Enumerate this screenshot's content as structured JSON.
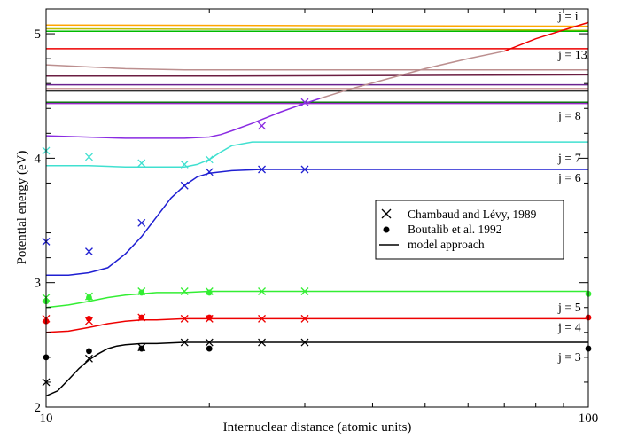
{
  "chart_data": {
    "type": "line",
    "xlabel": "Internuclear distance (atomic units)",
    "ylabel": "Potential energy (eV)",
    "xscale": "log",
    "xlim": [
      10,
      100
    ],
    "ylim": [
      2,
      5.2
    ],
    "xticks": [
      10,
      100
    ],
    "yticks": [
      2,
      3,
      4,
      5
    ],
    "grid": false,
    "legend_position": "center-right",
    "legend": [
      {
        "marker": "cross",
        "label": "Chambaud and Lévy, 1989"
      },
      {
        "marker": "dot",
        "label": "Boutalib et al. 1992"
      },
      {
        "marker": "line",
        "label": "model approach"
      }
    ],
    "curve_labels": [
      {
        "text": "j = i",
        "x": 88,
        "y": 5.11
      },
      {
        "text": "j = 13",
        "x": 88,
        "y": 4.8
      },
      {
        "text": "j = 8",
        "x": 88,
        "y": 4.31
      },
      {
        "text": "j = 7",
        "x": 88,
        "y": 3.97
      },
      {
        "text": "j = 6",
        "x": 88,
        "y": 3.81
      },
      {
        "text": "j = 5",
        "x": 88,
        "y": 2.77
      },
      {
        "text": "j = 4",
        "x": 88,
        "y": 2.61
      },
      {
        "text": "j = 3",
        "x": 88,
        "y": 2.37
      }
    ],
    "series": [
      {
        "color": "#ffa500",
        "x": [
          10,
          100
        ],
        "y": [
          5.07,
          5.06
        ]
      },
      {
        "color": "#bcbc00",
        "x": [
          10,
          100
        ],
        "y": [
          5.04,
          5.03
        ]
      },
      {
        "color": "#00bb00",
        "x": [
          10,
          100
        ],
        "y": [
          5.02,
          5.02
        ]
      },
      {
        "color": "#ee0000",
        "x": [
          10,
          100
        ],
        "y": [
          4.88,
          4.88
        ]
      },
      {
        "color": "#bc8f8f",
        "x": [
          10,
          14,
          18,
          25,
          40,
          60,
          100
        ],
        "y": [
          4.75,
          4.72,
          4.71,
          4.71,
          4.71,
          4.71,
          4.71
        ]
      },
      {
        "color": "#6b1e42",
        "x": [
          10,
          20,
          100
        ],
        "y": [
          4.66,
          4.66,
          4.67
        ]
      },
      {
        "color": "#6a2390",
        "x": [
          10,
          20,
          100
        ],
        "y": [
          4.59,
          4.59,
          4.59
        ]
      },
      {
        "color": "#d0a0a0",
        "x": [
          10,
          100
        ],
        "y": [
          4.56,
          4.56
        ]
      },
      {
        "color": "#2f2f2f",
        "x": [
          10,
          100
        ],
        "y": [
          4.54,
          4.54
        ]
      },
      {
        "color": "#007a00",
        "x": [
          10,
          100
        ],
        "y": [
          4.45,
          4.45
        ]
      },
      {
        "color": "#9a2ac9",
        "x": [
          10,
          100
        ],
        "y": [
          4.44,
          4.44
        ]
      },
      {
        "color": "#8a2be2",
        "x": [
          10,
          14,
          18,
          20,
          21,
          22,
          24,
          27,
          30,
          32
        ],
        "y": [
          4.18,
          4.16,
          4.16,
          4.17,
          4.19,
          4.22,
          4.28,
          4.37,
          4.44,
          4.48
        ]
      },
      {
        "color": "#bc8f8f",
        "x": [
          32,
          36,
          42,
          50,
          60,
          70
        ],
        "y": [
          4.48,
          4.55,
          4.63,
          4.72,
          4.8,
          4.86
        ]
      },
      {
        "color": "#ee0000",
        "x": [
          70,
          80,
          90,
          100
        ],
        "y": [
          4.86,
          4.96,
          5.03,
          5.09
        ]
      },
      {
        "color": "#40e0d0",
        "x": [
          10,
          12,
          14,
          16,
          18,
          19,
          20,
          21,
          22,
          24,
          30,
          100
        ],
        "y": [
          3.94,
          3.94,
          3.93,
          3.93,
          3.93,
          3.95,
          3.99,
          4.05,
          4.1,
          4.13,
          4.13,
          4.13
        ]
      },
      {
        "color": "#1f1fd2",
        "x": [
          10,
          11,
          12,
          13,
          14,
          15,
          16,
          17,
          18,
          19,
          20,
          22,
          25,
          30,
          100
        ],
        "y": [
          3.06,
          3.06,
          3.08,
          3.12,
          3.23,
          3.37,
          3.53,
          3.68,
          3.78,
          3.85,
          3.88,
          3.9,
          3.91,
          3.91,
          3.91
        ]
      },
      {
        "color": "#33ee33",
        "x": [
          10,
          11,
          12,
          13,
          14,
          15,
          16,
          18,
          20,
          25,
          100
        ],
        "y": [
          2.8,
          2.82,
          2.85,
          2.88,
          2.9,
          2.91,
          2.92,
          2.92,
          2.93,
          2.93,
          2.93
        ]
      },
      {
        "color": "#ee0000",
        "x": [
          10,
          11,
          12,
          13,
          14,
          15,
          16,
          18,
          20,
          25,
          100
        ],
        "y": [
          2.6,
          2.61,
          2.64,
          2.67,
          2.69,
          2.7,
          2.7,
          2.71,
          2.71,
          2.71,
          2.71
        ]
      },
      {
        "color": "#000000",
        "x": [
          10,
          10.5,
          11,
          11.5,
          12,
          12.5,
          13,
          13.5,
          14,
          15,
          16,
          18,
          20,
          25,
          100
        ],
        "y": [
          2.09,
          2.13,
          2.22,
          2.31,
          2.38,
          2.43,
          2.47,
          2.49,
          2.5,
          2.51,
          2.51,
          2.52,
          2.52,
          2.52,
          2.52
        ]
      }
    ],
    "points": [
      {
        "marker": "cross",
        "color": "#000000",
        "x": [
          10,
          12,
          15,
          18,
          20,
          25,
          30
        ],
        "y": [
          2.2,
          2.39,
          2.48,
          2.52,
          2.52,
          2.52,
          2.52
        ]
      },
      {
        "marker": "cross",
        "color": "#ee0000",
        "x": [
          10,
          12,
          15,
          18,
          20,
          25,
          30
        ],
        "y": [
          2.71,
          2.69,
          2.72,
          2.71,
          2.71,
          2.71,
          2.71
        ]
      },
      {
        "marker": "cross",
        "color": "#33ee33",
        "x": [
          10,
          12,
          15,
          18,
          20,
          25,
          30
        ],
        "y": [
          2.88,
          2.89,
          2.93,
          2.93,
          2.93,
          2.93,
          2.93
        ]
      },
      {
        "marker": "cross",
        "color": "#1f1fd2",
        "x": [
          10,
          12,
          15,
          18,
          20,
          25,
          30
        ],
        "y": [
          3.33,
          3.25,
          3.48,
          3.78,
          3.89,
          3.91,
          3.91
        ]
      },
      {
        "marker": "cross",
        "color": "#40e0d0",
        "x": [
          10,
          12,
          15,
          18,
          20
        ],
        "y": [
          4.06,
          4.01,
          3.96,
          3.95,
          3.99
        ]
      },
      {
        "marker": "cross",
        "color": "#8a2be2",
        "x": [
          25,
          30
        ],
        "y": [
          4.26,
          4.45
        ]
      },
      {
        "marker": "dot",
        "color": "#000000",
        "x": [
          10,
          12,
          15,
          20,
          100
        ],
        "y": [
          2.4,
          2.45,
          2.47,
          2.47,
          2.47
        ]
      },
      {
        "marker": "dot",
        "color": "#ee0000",
        "x": [
          10,
          12,
          15,
          20,
          100
        ],
        "y": [
          2.69,
          2.71,
          2.72,
          2.72,
          2.72
        ]
      },
      {
        "marker": "dot",
        "color": "#33ee33",
        "x": [
          10,
          12,
          15,
          20,
          100
        ],
        "y": [
          2.85,
          2.88,
          2.92,
          2.92,
          2.91
        ]
      }
    ]
  }
}
